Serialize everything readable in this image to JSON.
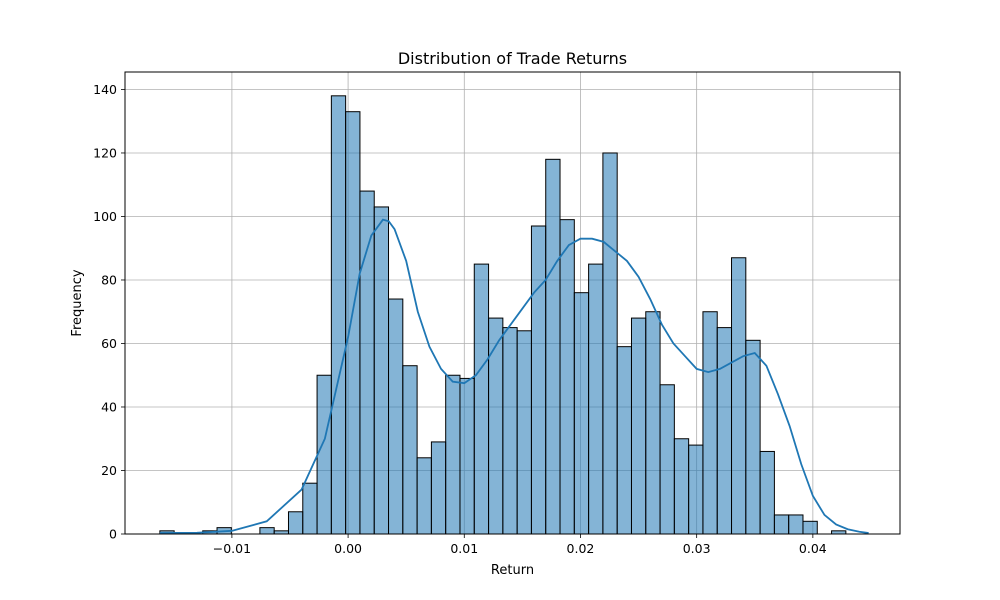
{
  "chart_data": {
    "type": "bar",
    "title": "Distribution of Trade Returns",
    "xlabel": "Return",
    "ylabel": "Frequency",
    "xlim": [
      -0.0192,
      0.0475
    ],
    "ylim": [
      0,
      145.5
    ],
    "grid": true,
    "bin_start": -0.0162,
    "bin_width": 0.00123,
    "counts": [
      1,
      0,
      0,
      1,
      2,
      0,
      0,
      2,
      1,
      7,
      16,
      50,
      138,
      133,
      108,
      103,
      74,
      53,
      24,
      29,
      50,
      49,
      85,
      68,
      65,
      64,
      97,
      118,
      99,
      76,
      85,
      120,
      59,
      68,
      70,
      47,
      30,
      28,
      70,
      65,
      87,
      61,
      26,
      6,
      6,
      4,
      0,
      1
    ],
    "bar_color": "#1f77b4",
    "kde": {
      "x": [
        -0.0162,
        -0.013,
        -0.01,
        -0.007,
        -0.004,
        -0.002,
        0.0,
        0.001,
        0.002,
        0.003,
        0.0035,
        0.004,
        0.005,
        0.006,
        0.007,
        0.008,
        0.009,
        0.01,
        0.011,
        0.012,
        0.013,
        0.014,
        0.015,
        0.016,
        0.017,
        0.018,
        0.019,
        0.02,
        0.021,
        0.022,
        0.023,
        0.024,
        0.025,
        0.026,
        0.027,
        0.028,
        0.029,
        0.03,
        0.031,
        0.032,
        0.033,
        0.034,
        0.035,
        0.036,
        0.037,
        0.038,
        0.039,
        0.04,
        0.041,
        0.042,
        0.043,
        0.044,
        0.0448
      ],
      "y": [
        0.3,
        0.4,
        1,
        4,
        14,
        30,
        62,
        82,
        94,
        99,
        98.5,
        96,
        86,
        70,
        59,
        52,
        48,
        47.5,
        50,
        55,
        61,
        66,
        71,
        76,
        80,
        86,
        91,
        93,
        93,
        92,
        89,
        86,
        81,
        74,
        66,
        60,
        56,
        52,
        51,
        52,
        54,
        56,
        57,
        53,
        44,
        34,
        22,
        12,
        6,
        3,
        1.5,
        0.7,
        0.3
      ],
      "color": "#1f77b4"
    },
    "x_ticks": [
      -0.01,
      0.0,
      0.01,
      0.02,
      0.03,
      0.04
    ],
    "x_tick_labels": [
      "−0.01",
      "0.00",
      "0.01",
      "0.02",
      "0.03",
      "0.04"
    ],
    "y_ticks": [
      0,
      20,
      40,
      60,
      80,
      100,
      120,
      140
    ],
    "y_tick_labels": [
      "0",
      "20",
      "40",
      "60",
      "80",
      "100",
      "120",
      "140"
    ]
  }
}
